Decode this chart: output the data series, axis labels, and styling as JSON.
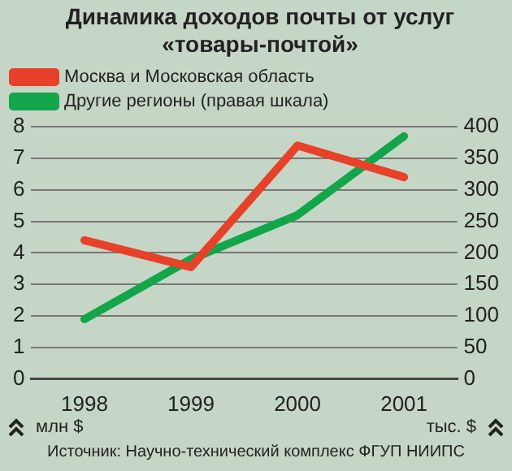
{
  "chart_data": {
    "type": "line",
    "title": "Динамика доходов почты от услуг «товары-почтой»",
    "categories": [
      "1998",
      "1999",
      "2000",
      "2001"
    ],
    "series": [
      {
        "name": "Москва и Московская область",
        "color": "#e8412a",
        "values": [
          4.4,
          3.55,
          7.4,
          6.4
        ]
      },
      {
        "name": "Другие регионы (правая шкала)",
        "color": "#12a54a",
        "values": [
          95,
          190,
          260,
          385
        ],
        "axis": "y2"
      }
    ],
    "ylim": [
      0,
      8
    ],
    "yticks": [
      0,
      1,
      2,
      3,
      4,
      5,
      6,
      7,
      8
    ],
    "y2lim": [
      0,
      400
    ],
    "y2ticks": [
      0,
      50,
      100,
      150,
      200,
      250,
      300,
      350,
      400
    ],
    "annotations": [
      "млн $",
      "тыс. $",
      "Источник: Научно-технический комплекс ФГУП НИИПС"
    ],
    "grid": "y",
    "legend": "top left",
    "marker": "none",
    "line_style": "solid"
  }
}
